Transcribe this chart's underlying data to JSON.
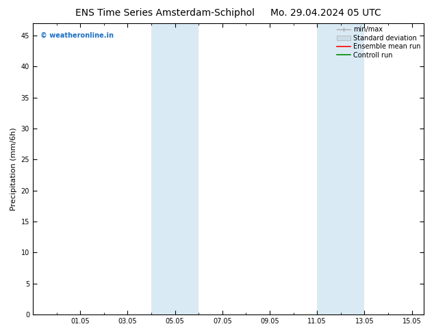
{
  "title_left": "ENS Time Series Amsterdam-Schiphol",
  "title_right": "Mo. 29.04.2024 05 UTC",
  "ylabel": "Precipitation (mm/6h)",
  "ylim": [
    0,
    47
  ],
  "yticks": [
    0,
    5,
    10,
    15,
    20,
    25,
    30,
    35,
    40,
    45
  ],
  "xmin": -1.0,
  "xmax": 15.5,
  "xtick_labels": [
    "01.05",
    "03.05",
    "05.05",
    "07.05",
    "09.05",
    "11.05",
    "13.05",
    "15.05"
  ],
  "xtick_positions": [
    1.0,
    3.0,
    5.0,
    7.0,
    9.0,
    11.0,
    13.0,
    15.0
  ],
  "shaded_bands": [
    {
      "xmin": 4.0,
      "xmax": 6.0
    },
    {
      "xmin": 11.0,
      "xmax": 13.0
    }
  ],
  "shade_color": "#daeaf5",
  "background_color": "#ffffff",
  "plot_bg_color": "#ffffff",
  "watermark_text": "© weatheronline.in",
  "watermark_color": "#1a6fc4",
  "minmax_color": "#aaaaaa",
  "std_color": "#ccdde8",
  "ens_color": "#ff0000",
  "ctrl_color": "#008800",
  "title_fontsize": 10,
  "ylabel_fontsize": 8,
  "tick_fontsize": 7,
  "legend_fontsize": 7,
  "watermark_fontsize": 7
}
